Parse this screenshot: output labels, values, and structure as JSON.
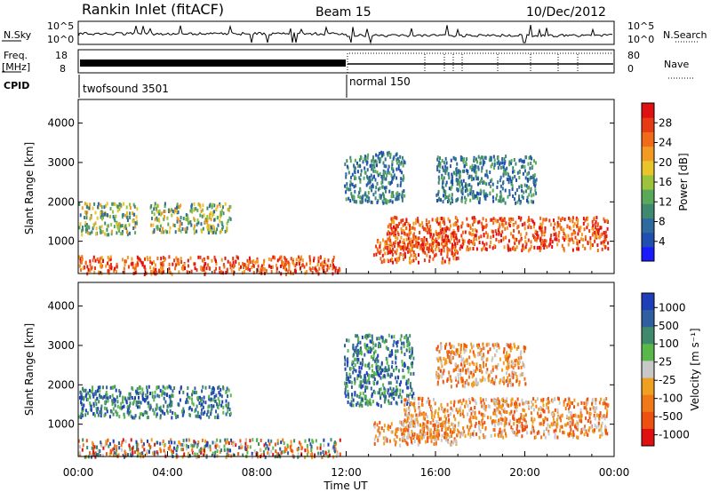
{
  "header": {
    "station": "Rankin Inlet (fitACF)",
    "beam": "Beam 15",
    "date": "10/Dec/2012"
  },
  "noise_panel": {
    "left_label": "N.Sky",
    "right_label": "N.Search",
    "left_ticks": [
      "10^5",
      "10^0"
    ],
    "right_ticks": [
      "10^5",
      "10^0"
    ]
  },
  "freq_panel": {
    "left_label": "Freq.",
    "left_unit": "[MHz]",
    "left_ticks": [
      "18",
      "8"
    ],
    "right_label": "Nave",
    "right_ticks": [
      "80",
      "0"
    ]
  },
  "cpid": {
    "label": "CPID",
    "modes": [
      {
        "name": "twofsound 3501",
        "start_hour": 0
      },
      {
        "name": "normal 150",
        "start_hour": 12
      }
    ]
  },
  "chart_data": [
    {
      "type": "heatmap",
      "quantity": "Power",
      "ylabel": "Slant Range [km]",
      "xlabel": "",
      "x_ticks": [],
      "y_ticks": [
        "1000",
        "2000",
        "3000",
        "4000"
      ],
      "xlim_hours": [
        0,
        24
      ],
      "ylim_km": [
        180,
        4600
      ],
      "colorbar": {
        "label": "Power [dB]",
        "ticks": [
          "4",
          "8",
          "12",
          "16",
          "20",
          "24",
          "28"
        ],
        "range": [
          0,
          30
        ],
        "colors": [
          "#1a1aff",
          "#1f4fb0",
          "#2f6a9f",
          "#3f8a6f",
          "#5aa85a",
          "#9bc43c",
          "#e8c62a",
          "#f29a22",
          "#f06a18",
          "#e83a14",
          "#e01010"
        ]
      },
      "regions": [
        {
          "t0": 0.0,
          "t1": 11.7,
          "r0": 200,
          "r1": 650,
          "level": "high"
        },
        {
          "t0": 0.0,
          "t1": 2.6,
          "r0": 1200,
          "r1": 2000,
          "level": "medium"
        },
        {
          "t0": 3.2,
          "t1": 6.8,
          "r0": 1250,
          "r1": 2000,
          "level": "medium"
        },
        {
          "t0": 11.9,
          "t1": 14.6,
          "r0": 2000,
          "r1": 3300,
          "level": "low"
        },
        {
          "t0": 13.2,
          "t1": 17.0,
          "r0": 500,
          "r1": 1100,
          "level": "high"
        },
        {
          "t0": 13.8,
          "t1": 23.7,
          "r0": 800,
          "r1": 1650,
          "level": "high"
        },
        {
          "t0": 16.0,
          "t1": 20.5,
          "r0": 2000,
          "r1": 3200,
          "level": "low"
        }
      ]
    },
    {
      "type": "heatmap",
      "quantity": "Velocity",
      "ylabel": "Slant Range [km]",
      "xlabel": "Time UT",
      "x_ticks": [
        "00:00",
        "04:00",
        "08:00",
        "12:00",
        "16:00",
        "20:00",
        "00:00"
      ],
      "y_ticks": [
        "1000",
        "2000",
        "3000",
        "4000"
      ],
      "xlim_hours": [
        0,
        24
      ],
      "ylim_km": [
        180,
        4600
      ],
      "colorbar": {
        "label": "Velocity [m s⁻¹]",
        "ticks": [
          "1000",
          "500",
          "100",
          "25",
          "-25",
          "-100",
          "-500",
          "-1000"
        ],
        "colors": [
          "#1f3fb8",
          "#2f5fa0",
          "#3f8a6a",
          "#5ab84a",
          "#c8c8c8",
          "#f0a020",
          "#f07818",
          "#ee5010",
          "#e01010"
        ]
      },
      "regions": [
        {
          "t0": 0.0,
          "t1": 11.7,
          "r0": 200,
          "r1": 650,
          "level": "mixed"
        },
        {
          "t0": 0.0,
          "t1": 6.8,
          "r0": 1200,
          "r1": 2000,
          "level": "positive"
        },
        {
          "t0": 11.9,
          "t1": 15.0,
          "r0": 1500,
          "r1": 3300,
          "level": "positive"
        },
        {
          "t0": 13.2,
          "t1": 17.0,
          "r0": 500,
          "r1": 1100,
          "level": "negative"
        },
        {
          "t0": 14.5,
          "t1": 23.7,
          "r0": 700,
          "r1": 1700,
          "level": "negative"
        },
        {
          "t0": 16.0,
          "t1": 20.0,
          "r0": 2000,
          "r1": 3100,
          "level": "negative"
        }
      ]
    }
  ]
}
